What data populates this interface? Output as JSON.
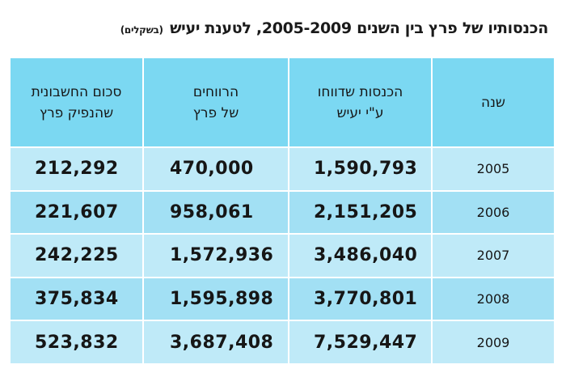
{
  "title": "הכנסותיו של פרץ בין השנים 2005-2009, לטענת יעיש",
  "title_unit": "(בשקלים)",
  "headers": {
    "year": "שנה",
    "reported_income": [
      "הכנסות שדווחו",
      "ע\"י יעיש"
    ],
    "profits": [
      "הרווחים",
      "של פרץ"
    ],
    "accounting": [
      "סכום החשבונית",
      "שהנפיק פרץ"
    ]
  },
  "rows": [
    {
      "year": "2005",
      "reported_income": "1,590,793",
      "profits": "470,000",
      "accounting": "212,292"
    },
    {
      "year": "2006",
      "reported_income": "2,151,205",
      "profits": "958,061",
      "accounting": "221,607"
    },
    {
      "year": "2007",
      "reported_income": "3,486,040",
      "profits": "1,572,936",
      "accounting": "242,225"
    },
    {
      "year": "2008",
      "reported_income": "3,770,801",
      "profits": "1,595,898",
      "accounting": "375,834"
    },
    {
      "year": "2009",
      "reported_income": "7,529,447",
      "profits": "3,687,408",
      "accounting": "523,832"
    }
  ],
  "colors": {
    "header": "#7bd8f2",
    "row_light": "#bfeaf8",
    "row_dark": "#a2e0f4"
  }
}
